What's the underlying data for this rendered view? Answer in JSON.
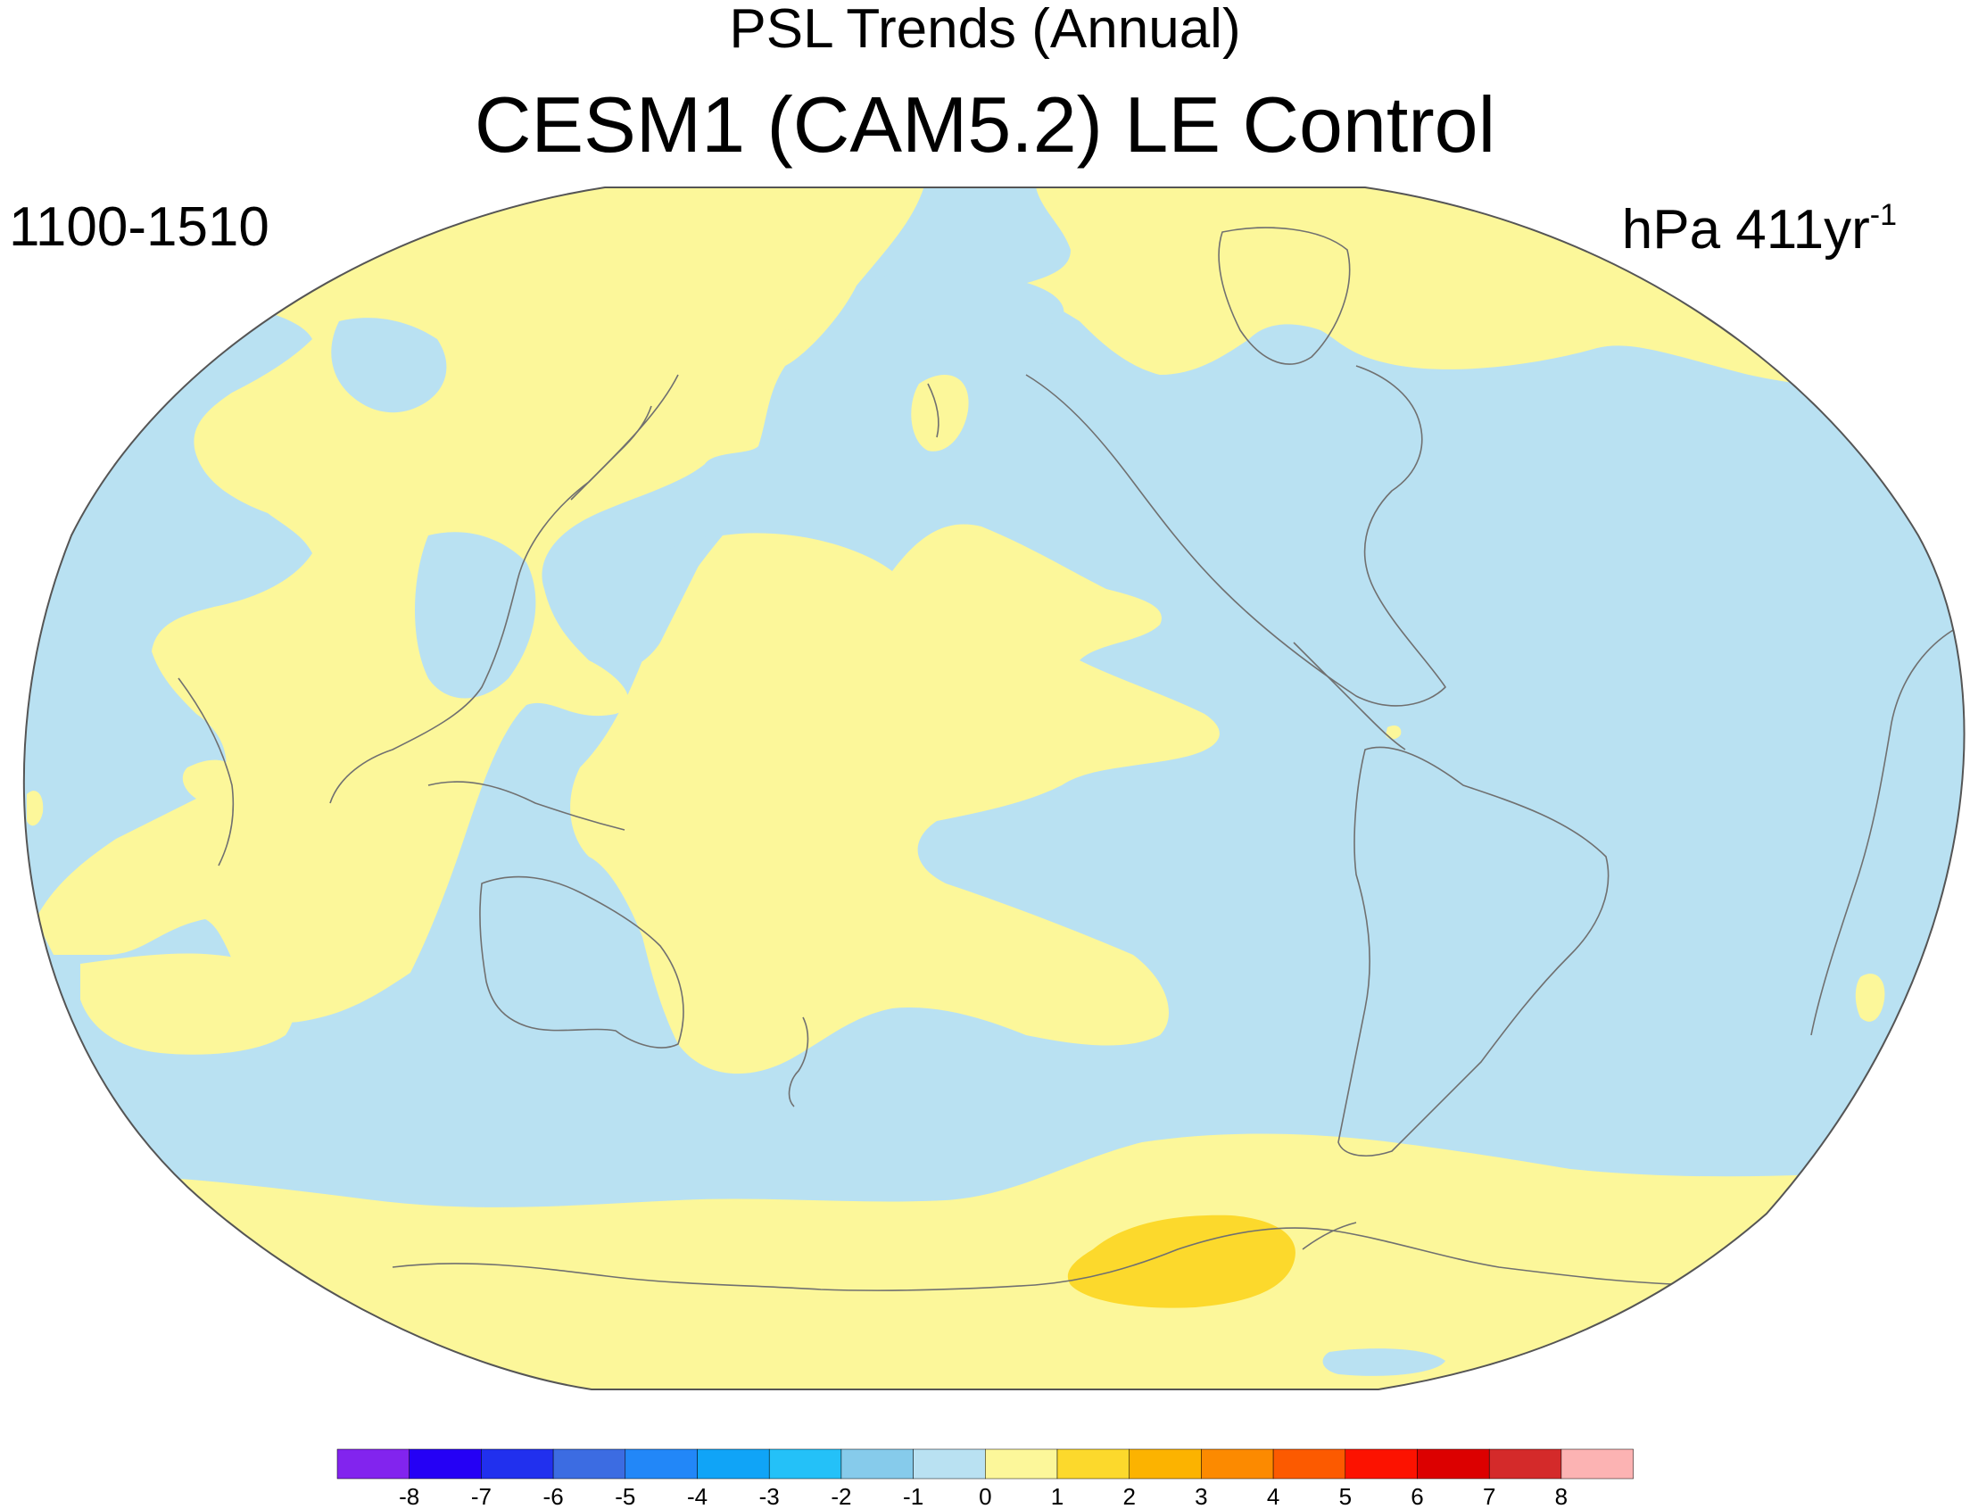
{
  "title": "PSL Trends (Annual)",
  "subtitle": "CESM1 (CAM5.2) LE Control",
  "period": "1100-1510",
  "units": {
    "base": "hPa 411yr",
    "exponent": "-1"
  },
  "colors": {
    "ocean_background": "#b9e1f2",
    "positive_light": "#fcf79a",
    "positive_medium": "#fcd92c",
    "coastline": "#707070",
    "map_border": "#555555"
  },
  "colorbar": {
    "colors": [
      "#8224ee",
      "#2500f5",
      "#2130ee",
      "#3c6ce2",
      "#2287f8",
      "#10a4f7",
      "#24c1f8",
      "#86cbeb",
      "#b9e1f2",
      "#fcf79a",
      "#fcd92c",
      "#fcb300",
      "#fc8a00",
      "#fc5a00",
      "#fc1200",
      "#dc0000",
      "#d42a2a",
      "#fcb3b3"
    ],
    "labels": [
      "-8",
      "-7",
      "-6",
      "-5",
      "-4",
      "-3",
      "-2",
      "-1",
      "0",
      "1",
      "2",
      "3",
      "4",
      "5",
      "6",
      "7",
      "8"
    ]
  }
}
